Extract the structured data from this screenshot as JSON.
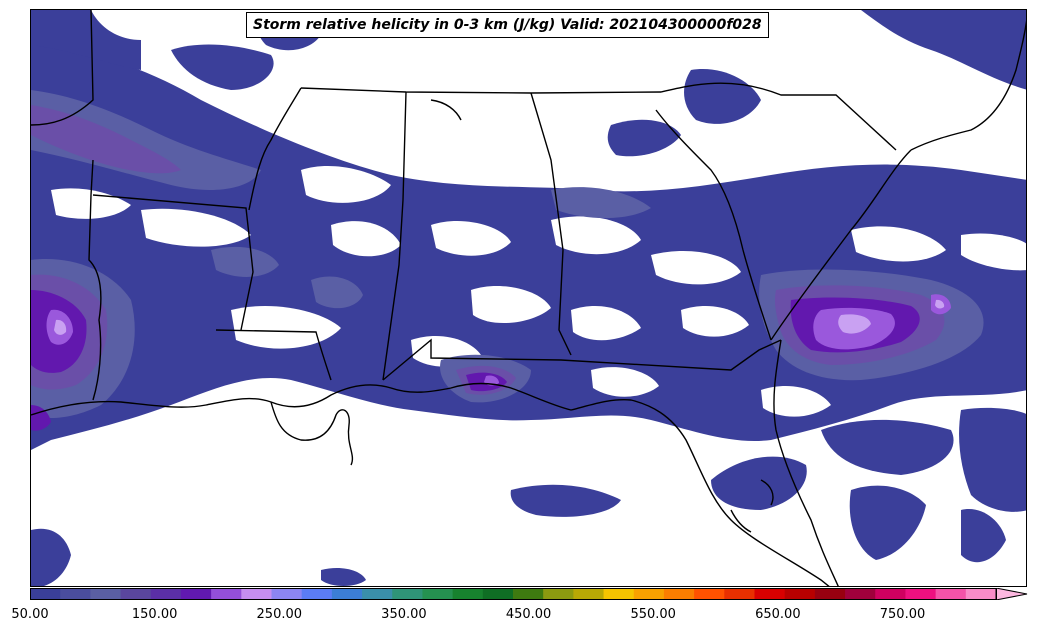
{
  "title": "Storm relative helicity in 0-3 km (J/kg) Valid: 202104300000f028",
  "colorbar": {
    "min": 50,
    "max": 825,
    "step": 25,
    "extend": "max",
    "colors": [
      "#3a3f99",
      "#4a4d9e",
      "#5a5fa3",
      "#5a469e",
      "#5b2fa6",
      "#6119b0",
      "#934fd9",
      "#c68ef0",
      "#8c85f2",
      "#5b7cf5",
      "#3c7ed6",
      "#3a8fab",
      "#2f9478",
      "#259150",
      "#17822e",
      "#0f6e24",
      "#3e7a10",
      "#8c9a10",
      "#b8a805",
      "#f5c400",
      "#f8a100",
      "#fb7e00",
      "#ff5200",
      "#e83000",
      "#d80000",
      "#b80000",
      "#980010",
      "#a0003c",
      "#d00060",
      "#ee1080",
      "#f453a8",
      "#f98cc8"
    ],
    "extend_color": "#fdb8e0",
    "tick_labels": [
      "50.00",
      "150.00",
      "250.00",
      "350.00",
      "450.00",
      "550.00",
      "650.00",
      "750.00"
    ],
    "tick_values": [
      50,
      150,
      250,
      350,
      450,
      550,
      650,
      750
    ]
  },
  "map_colors": {
    "level1": "#3b3f9a",
    "level2": "#5a5fa5",
    "level3": "#6a4fa8",
    "level4": "#6218ae",
    "level5": "#9a58dc",
    "level6": "#c9a1f2",
    "boundary": "#000000"
  }
}
